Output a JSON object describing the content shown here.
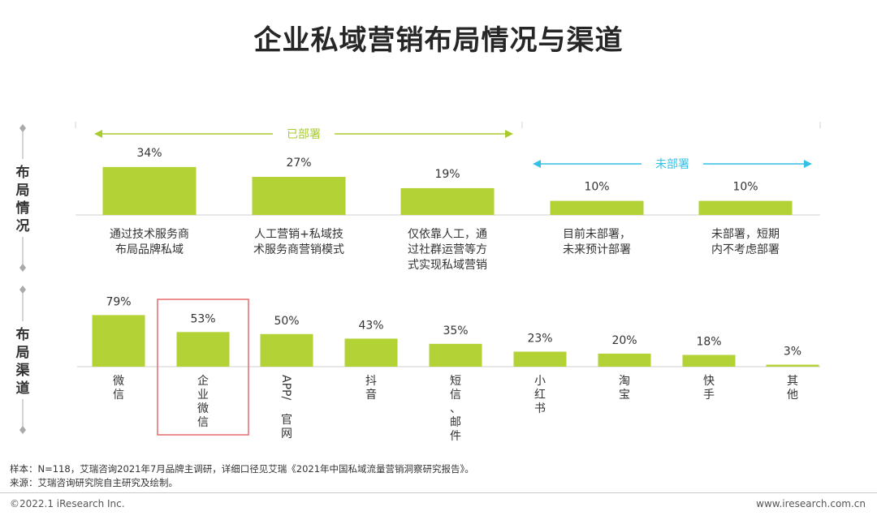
{
  "page": {
    "title": "企业私域营销布局情况与渠道",
    "footnote_sample": "样本：N=118，艾瑞咨询2021年7月品牌主调研，详细口径见艾瑞《2021年中国私域流量营销洞察研究报告》。",
    "footnote_source": "来源：艾瑞咨询研究院自主研究及绘制。",
    "copyright": "©2022.1 iResearch Inc.",
    "website": "www.iresearch.com.cn"
  },
  "colors": {
    "bar": "#b2d235",
    "deployed_arrow": "#a8cc2e",
    "undeployed_arrow": "#33c2e6",
    "highlight_box": "#e86a6a",
    "axis": "#aaaaaa"
  },
  "chart_data": [
    {
      "type": "bar",
      "section_label": "布局情况",
      "categories": [
        "通过技术服务商布局品牌私域",
        "人工营销+私域技术服务商营销模式",
        "仅依靠人工，通过社群运营等方式实现私域营销",
        "目前未部署，未来预计部署",
        "未部署，短期内不考虑部署"
      ],
      "category_lines": [
        [
          "通过技术服务商",
          "布局品牌私域"
        ],
        [
          "人工营销+私域技",
          "术服务商营销模式"
        ],
        [
          "仅依靠人工，通",
          "过社群运营等方",
          "式实现私域营销"
        ],
        [
          "目前未部署，",
          "未来预计部署"
        ],
        [
          "未部署，短期",
          "内不考虑部署"
        ]
      ],
      "values": [
        34,
        27,
        19,
        10,
        10
      ],
      "value_labels": [
        "34%",
        "27%",
        "19%",
        "10%",
        "10%"
      ],
      "unit": "%",
      "groups": [
        {
          "label": "已部署",
          "from": 0,
          "to": 2
        },
        {
          "label": "未部署",
          "from": 3,
          "to": 4
        }
      ]
    },
    {
      "type": "bar",
      "section_label": "布局渠道",
      "categories": [
        "微信",
        "企业微信",
        "APP/官网",
        "抖音",
        "短信、邮件",
        "小红书",
        "淘宝",
        "快手",
        "其他"
      ],
      "values": [
        79,
        53,
        50,
        43,
        35,
        23,
        20,
        18,
        3
      ],
      "value_labels": [
        "79%",
        "53%",
        "50%",
        "43%",
        "35%",
        "23%",
        "20%",
        "18%",
        "3%"
      ],
      "unit": "%",
      "highlighted_category": "企业微信"
    }
  ]
}
